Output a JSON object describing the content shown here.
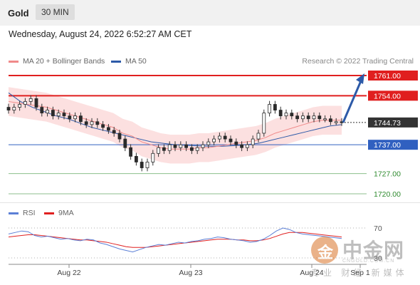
{
  "header": {
    "instrument": "Gold",
    "interval": "30 MIN",
    "datetime": "Wednesday, August 24, 2022 6:52:27 AM CET"
  },
  "legend": {
    "bollinger": {
      "label": "MA 20 + Bollinger Bands",
      "color": "#f08a8a"
    },
    "ma50": {
      "label": "MA 50",
      "color": "#2d5aa8"
    },
    "credit": "Research © 2022 Trading Central"
  },
  "rsi_legend": {
    "rsi": {
      "label": "RSI",
      "color": "#5b7fd6"
    },
    "ma9": {
      "label": "9MA",
      "color": "#e02020"
    }
  },
  "watermark": {
    "logo_char": "金",
    "title": "中金网",
    "url": "CNGOLD.COM.CN",
    "subtitle": "专业 财经 新媒体"
  },
  "chart_data": [
    {
      "type": "candlestick",
      "title": "Gold",
      "x_tick_labels": [
        "Aug 22",
        "Aug 23",
        "Aug 24",
        "Sep 1"
      ],
      "price_range": [
        1715,
        1765
      ],
      "current_price": 1744.73,
      "levels": [
        {
          "value": 1761.0,
          "label": "1761.00",
          "kind": "resistance",
          "color": "#e01f1f"
        },
        {
          "value": 1754.0,
          "label": "1754.00",
          "kind": "resistance",
          "color": "#e01f1f"
        },
        {
          "value": 1744.73,
          "label": "1744.73",
          "kind": "current",
          "color": "#333333"
        },
        {
          "value": 1737.0,
          "label": "1737.00",
          "kind": "pivot",
          "color": "#3060c0"
        },
        {
          "value": 1727.0,
          "label": "1727.00",
          "kind": "support",
          "color": "#2e8a2e"
        },
        {
          "value": 1720.0,
          "label": "1720.00",
          "kind": "support",
          "color": "#2e8a2e"
        }
      ],
      "forecast_target": 1761.0,
      "close": [
        1749,
        1750,
        1751,
        1752,
        1753,
        1750,
        1748,
        1749,
        1747,
        1748,
        1747,
        1746,
        1747,
        1745,
        1744,
        1745,
        1744,
        1743,
        1742,
        1741,
        1739,
        1736,
        1733,
        1731,
        1729,
        1731,
        1734,
        1736,
        1735,
        1737,
        1736,
        1737,
        1736,
        1735,
        1736,
        1737,
        1738,
        1739,
        1740,
        1739,
        1738,
        1737,
        1736,
        1737,
        1739,
        1741,
        1748,
        1751,
        1749,
        1747,
        1748,
        1747,
        1746,
        1747,
        1746,
        1747,
        1746,
        1746,
        1745,
        1745,
        1744.73
      ],
      "ma20": [
        1752,
        1751.5,
        1751,
        1750.5,
        1750,
        1749,
        1748,
        1747,
        1746,
        1745,
        1744,
        1743,
        1741,
        1740,
        1738,
        1737,
        1736,
        1735.5,
        1735.5,
        1735.5,
        1736,
        1736,
        1736.5,
        1737,
        1737.5,
        1738,
        1738.5,
        1739.5,
        1741,
        1742,
        1743,
        1744,
        1745,
        1745.5,
        1745.5,
        1745.5
      ],
      "ma50": [
        1755,
        1752,
        1750,
        1748.5,
        1747,
        1746,
        1744.5,
        1743,
        1742,
        1741,
        1740,
        1739,
        1738,
        1737.5,
        1737,
        1736.8,
        1736.6,
        1736.5,
        1736.5,
        1736.7,
        1737,
        1737.5,
        1738.5,
        1739.5,
        1740.5,
        1741.5,
        1742.5,
        1743.5,
        1744
      ],
      "rsi_scale_labels": [
        "70",
        "30"
      ],
      "rsi": [
        62,
        64,
        66,
        65,
        60,
        58,
        59,
        57,
        55,
        56,
        54,
        53,
        55,
        54,
        50,
        48,
        45,
        42,
        40,
        38,
        41,
        44,
        46,
        48,
        47,
        49,
        51,
        50,
        52,
        53,
        55,
        56,
        58,
        57,
        55,
        54,
        53,
        51,
        52,
        55,
        60,
        66,
        70,
        68,
        64,
        62,
        61,
        60,
        59,
        58,
        57,
        56
      ],
      "rsi_ma9": [
        58,
        59,
        60,
        61,
        61,
        60,
        59,
        58,
        57,
        56,
        55,
        54,
        54,
        53,
        52,
        51,
        49,
        47,
        45,
        44,
        44,
        44,
        45,
        46,
        47,
        48,
        49,
        50,
        51,
        52,
        53,
        54,
        55,
        55,
        55,
        54,
        54,
        53,
        53,
        54,
        56,
        59,
        62,
        64,
        64,
        64,
        63,
        62,
        61,
        60,
        59,
        58
      ]
    }
  ]
}
